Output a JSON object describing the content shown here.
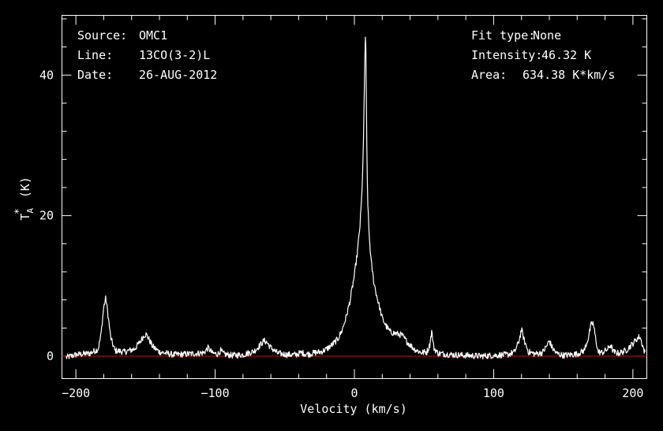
{
  "header": {
    "source_label": "Source:",
    "source_value": "OMC1",
    "line_label": "Line:",
    "line_value": "13CO(3-2)L",
    "date_label": "Date:",
    "date_value": "26-AUG-2012",
    "fit_label": "Fit type:",
    "fit_value": "None",
    "intensity_label": "Intensity:",
    "intensity_value": "46.32 K",
    "area_label": "Area:",
    "area_value": "634.38 K*km/s"
  },
  "chart_data": {
    "type": "line",
    "xlabel": "Velocity (km/s)",
    "ylabel": "T*A (K)",
    "xlim": [
      -210,
      210
    ],
    "ylim": [
      -3.2,
      48.5
    ],
    "xticks": [
      -200,
      -100,
      0,
      100,
      200
    ],
    "yticks": [
      0,
      20,
      40
    ],
    "grid": false,
    "colors": {
      "background": "#000000",
      "trace": "#ffffff",
      "baseline": "#cc1111",
      "axes": "#ffffff"
    },
    "baseline_value": 0,
    "series": [
      {
        "values_note_only_for_trace": "",
        "x": [
          -207,
          -200,
          -190,
          -184,
          -182,
          -180,
          -178.5,
          -177,
          -175,
          -172,
          -165,
          -158,
          -154,
          -151,
          -149.5,
          -148,
          -145,
          -140,
          -130,
          -120,
          -112,
          -108,
          -105,
          -102,
          -98,
          -96,
          -94,
          -88,
          -80,
          -72,
          -68,
          -65,
          -63,
          -60,
          -55,
          -48,
          -42,
          -38,
          -35,
          -32,
          -28,
          -24,
          -20,
          -16,
          -12,
          -9,
          -6,
          -3,
          0,
          2,
          4,
          5.5,
          6.5,
          7.2,
          7.8,
          8.2,
          8.6,
          9,
          9.5,
          10.5,
          12,
          14,
          16,
          18,
          20,
          23,
          26,
          30,
          34,
          38,
          43,
          48,
          52,
          54,
          55.5,
          57,
          60,
          70,
          80,
          90,
          100,
          110,
          115,
          118,
          120,
          122,
          125,
          130,
          135,
          138,
          140,
          142,
          145,
          150,
          160,
          165,
          168,
          170,
          171.5,
          173,
          175,
          178,
          182,
          184,
          186,
          190,
          195,
          200,
          203,
          205,
          207,
          209
        ],
        "y": [
          -0.2,
          0.2,
          0.4,
          1.0,
          3.0,
          7.0,
          8.3,
          6.0,
          2.6,
          0.8,
          0.6,
          1.0,
          2.0,
          3.0,
          3.1,
          2.6,
          1.4,
          0.6,
          0.2,
          0.3,
          0.4,
          0.5,
          1.2,
          0.4,
          0.3,
          0.8,
          0.3,
          0.1,
          0.2,
          0.7,
          1.5,
          2.2,
          2.0,
          1.2,
          0.4,
          0.2,
          0.2,
          0.5,
          0.3,
          0.3,
          0.5,
          0.6,
          1.0,
          1.6,
          2.4,
          3.6,
          5.5,
          8.0,
          11.5,
          14.5,
          18.5,
          23.5,
          30.5,
          38.5,
          45.8,
          44.5,
          36.0,
          28.5,
          22.5,
          17.5,
          13.5,
          10.5,
          8.6,
          7.0,
          5.4,
          4.2,
          3.4,
          3.2,
          3.0,
          2.0,
          1.0,
          0.5,
          0.6,
          1.5,
          3.6,
          1.2,
          0.4,
          0.2,
          0.1,
          0.0,
          0.1,
          0.2,
          0.6,
          2.0,
          3.8,
          2.2,
          0.6,
          0.3,
          0.5,
          1.4,
          2.2,
          1.2,
          0.4,
          0.1,
          0.3,
          0.8,
          2.6,
          4.5,
          4.7,
          2.8,
          0.6,
          0.5,
          1.0,
          1.6,
          0.6,
          0.4,
          0.8,
          1.8,
          2.5,
          2.8,
          1.5,
          0.2
        ]
      }
    ]
  }
}
